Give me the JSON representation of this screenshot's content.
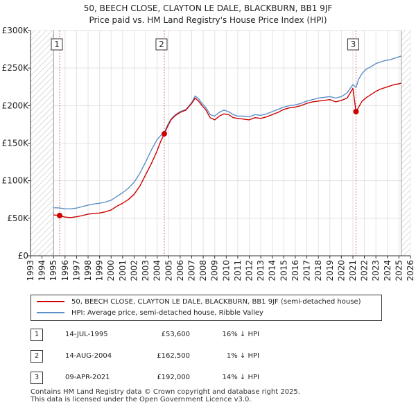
{
  "title_line1": "50, BEECH CLOSE, CLAYTON LE DALE, BLACKBURN, BB1 9JF",
  "title_line2": "Price paid vs. HM Land Registry's House Price Index (HPI)",
  "chart_data": {
    "type": "line",
    "title": "50, BEECH CLOSE, CLAYTON LE DALE, BLACKBURN, BB1 9JF — Price paid vs. HM Land Registry's House Price Index (HPI)",
    "xlim": [
      1993,
      2026
    ],
    "ylim": [
      0,
      300000
    ],
    "x_ticks": [
      "1993",
      "1994",
      "1995",
      "1996",
      "1997",
      "1998",
      "1999",
      "2000",
      "2001",
      "2002",
      "2003",
      "2004",
      "2005",
      "2006",
      "2007",
      "2008",
      "2009",
      "2010",
      "2011",
      "2012",
      "2013",
      "2014",
      "2015",
      "2016",
      "2017",
      "2018",
      "2019",
      "2020",
      "2021",
      "2022",
      "2023",
      "2024",
      "2025",
      "2026"
    ],
    "y_ticks": [
      {
        "value": 0,
        "label": "£0"
      },
      {
        "value": 50000,
        "label": "£50K"
      },
      {
        "value": 100000,
        "label": "£100K"
      },
      {
        "value": 150000,
        "label": "£150K"
      },
      {
        "value": 200000,
        "label": "£200K"
      },
      {
        "value": 250000,
        "label": "£250K"
      },
      {
        "value": 300000,
        "label": "£300K"
      }
    ],
    "data_range": [
      1995.0,
      2025.2
    ],
    "series": [
      {
        "name": "50, BEECH CLOSE, CLAYTON LE DALE, BLACKBURN, BB1 9JF (semi-detached house)",
        "color": "#cc0000",
        "x": [
          1995.0,
          1995.53,
          1996.0,
          1996.5,
          1997.0,
          1997.5,
          1998.0,
          1998.5,
          1999.0,
          1999.5,
          2000.0,
          2000.5,
          2001.0,
          2001.5,
          2002.0,
          2002.5,
          2003.0,
          2003.5,
          2004.0,
          2004.3,
          2004.62,
          2004.9,
          2005.2,
          2005.6,
          2006.0,
          2006.5,
          2007.0,
          2007.3,
          2007.6,
          2007.9,
          2008.2,
          2008.6,
          2009.0,
          2009.4,
          2009.8,
          2010.2,
          2010.6,
          2011.0,
          2011.5,
          2012.0,
          2012.5,
          2013.0,
          2013.5,
          2014.0,
          2014.5,
          2015.0,
          2015.5,
          2016.0,
          2016.5,
          2017.0,
          2017.5,
          2018.0,
          2018.5,
          2019.0,
          2019.5,
          2020.0,
          2020.5,
          2021.0,
          2021.27,
          2021.5,
          2021.8,
          2022.2,
          2022.6,
          2023.0,
          2023.4,
          2023.8,
          2024.2,
          2024.6,
          2025.0,
          2025.2
        ],
        "values": [
          54500,
          53600,
          51500,
          51000,
          52000,
          53500,
          55500,
          56500,
          57000,
          58500,
          61000,
          66000,
          70000,
          75000,
          82000,
          93000,
          108000,
          123000,
          140000,
          152000,
          162500,
          172000,
          181000,
          187000,
          191000,
          194000,
          203000,
          210000,
          206000,
          200000,
          195000,
          184000,
          181000,
          186000,
          189000,
          188000,
          184000,
          183000,
          182000,
          181000,
          184000,
          183000,
          185000,
          188000,
          191000,
          195000,
          197000,
          198000,
          200000,
          203000,
          205000,
          206000,
          207000,
          208000,
          205000,
          207000,
          210000,
          223000,
          192000,
          198000,
          206000,
          211000,
          215000,
          219000,
          222000,
          224000,
          226000,
          228000,
          229000,
          230000
        ]
      },
      {
        "name": "HPI: Average price, semi-detached house, Ribble Valley",
        "color": "#5b8ec6",
        "x": [
          1995.0,
          1995.5,
          1996.0,
          1996.5,
          1997.0,
          1997.5,
          1998.0,
          1998.5,
          1999.0,
          1999.5,
          2000.0,
          2000.5,
          2001.0,
          2001.5,
          2002.0,
          2002.5,
          2003.0,
          2003.5,
          2004.0,
          2004.3,
          2004.62,
          2004.9,
          2005.2,
          2005.6,
          2006.0,
          2006.5,
          2007.0,
          2007.3,
          2007.6,
          2007.9,
          2008.2,
          2008.6,
          2009.0,
          2009.4,
          2009.8,
          2010.2,
          2010.6,
          2011.0,
          2011.5,
          2012.0,
          2012.5,
          2013.0,
          2013.5,
          2014.0,
          2014.5,
          2015.0,
          2015.5,
          2016.0,
          2016.5,
          2017.0,
          2017.5,
          2018.0,
          2018.5,
          2019.0,
          2019.5,
          2020.0,
          2020.5,
          2021.0,
          2021.27,
          2021.5,
          2021.8,
          2022.2,
          2022.6,
          2023.0,
          2023.4,
          2023.8,
          2024.2,
          2024.6,
          2025.0,
          2025.2
        ],
        "values": [
          64000,
          63800,
          62500,
          62500,
          63500,
          65500,
          67500,
          69000,
          70000,
          71500,
          74000,
          79000,
          84000,
          90000,
          98000,
          110000,
          125000,
          141000,
          155000,
          160000,
          164000,
          174000,
          182000,
          188000,
          192000,
          195000,
          204000,
          213000,
          209000,
          203000,
          198000,
          188000,
          186000,
          191000,
          194000,
          192000,
          188000,
          186000,
          186000,
          185000,
          188000,
          187000,
          189000,
          192000,
          195000,
          198000,
          200000,
          201000,
          203000,
          206000,
          208000,
          210000,
          211000,
          212000,
          210000,
          212000,
          217000,
          228000,
          224000,
          235000,
          243000,
          249000,
          252000,
          256000,
          258000,
          260000,
          261000,
          263000,
          265000,
          266000
        ]
      }
    ],
    "sale_markers": [
      {
        "label": "1",
        "x": 1995.53,
        "value": 53600
      },
      {
        "label": "2",
        "x": 2004.62,
        "value": 162500
      },
      {
        "label": "3",
        "x": 2021.27,
        "value": 192000
      }
    ]
  },
  "legend": {
    "property_label": "50, BEECH CLOSE, CLAYTON LE DALE, BLACKBURN, BB1 9JF (semi-detached house)",
    "hpi_label": "HPI: Average price, semi-detached house, Ribble Valley"
  },
  "sales": [
    {
      "num": "1",
      "date": "14-JUL-1995",
      "price": "£53,600",
      "hpi": "16% ↓ HPI"
    },
    {
      "num": "2",
      "date": "14-AUG-2004",
      "price": "£162,500",
      "hpi": "1% ↓ HPI"
    },
    {
      "num": "3",
      "date": "09-APR-2021",
      "price": "£192,000",
      "hpi": "14% ↓ HPI"
    }
  ],
  "footer": {
    "line1": "Contains HM Land Registry data © Crown copyright and database right 2025.",
    "line2": "This data is licensed under the Open Government Licence v3.0."
  }
}
